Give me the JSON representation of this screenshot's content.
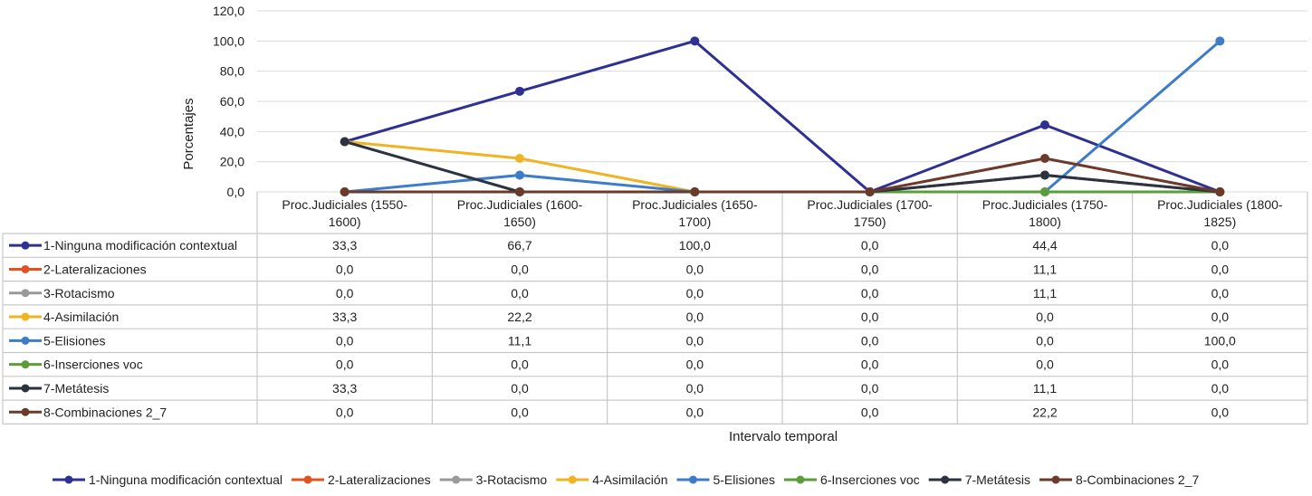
{
  "chart_data": {
    "type": "line",
    "ylabel": "Porcentajes",
    "xlabel": "Intervalo temporal",
    "ylim": [
      0,
      120
    ],
    "yticks": [
      "0,0",
      "20,0",
      "40,0",
      "60,0",
      "80,0",
      "100,0",
      "120,0"
    ],
    "grid": true,
    "legend_position": "bottom",
    "has_data_table": true,
    "categories": [
      [
        "Proc.Judiciales (1550-",
        "1600)"
      ],
      [
        "Proc.Judiciales (1600-",
        "1650)"
      ],
      [
        "Proc.Judiciales (1650-",
        "1700)"
      ],
      [
        "Proc.Judiciales (1700-",
        "1750)"
      ],
      [
        "Proc.Judiciales (1750-",
        "1800)"
      ],
      [
        "Proc.Judiciales (1800-",
        "1825)"
      ]
    ],
    "series": [
      {
        "name": "1-Ninguna modificación contextual",
        "color": "#2e3192",
        "values": [
          33.3,
          66.7,
          100.0,
          0.0,
          44.4,
          0.0
        ],
        "labels": [
          "33,3",
          "66,7",
          "100,0",
          "0,0",
          "44,4",
          "0,0"
        ]
      },
      {
        "name": "2-Lateralizaciones",
        "color": "#e0521f",
        "values": [
          0.0,
          0.0,
          0.0,
          0.0,
          11.1,
          0.0
        ],
        "labels": [
          "0,0",
          "0,0",
          "0,0",
          "0,0",
          "11,1",
          "0,0"
        ]
      },
      {
        "name": "3-Rotacismo",
        "color": "#9a9a9a",
        "values": [
          0.0,
          0.0,
          0.0,
          0.0,
          11.1,
          0.0
        ],
        "labels": [
          "0,0",
          "0,0",
          "0,0",
          "0,0",
          "11,1",
          "0,0"
        ]
      },
      {
        "name": "4-Asimilación",
        "color": "#f0b323",
        "values": [
          33.3,
          22.2,
          0.0,
          0.0,
          0.0,
          0.0
        ],
        "labels": [
          "33,3",
          "22,2",
          "0,0",
          "0,0",
          "0,0",
          "0,0"
        ]
      },
      {
        "name": "5-Elisiones",
        "color": "#3d7cc9",
        "values": [
          0.0,
          11.1,
          0.0,
          0.0,
          0.0,
          100.0
        ],
        "labels": [
          "0,0",
          "11,1",
          "0,0",
          "0,0",
          "0,0",
          "100,0"
        ]
      },
      {
        "name": "6-Inserciones voc",
        "color": "#5a9e3a",
        "values": [
          0.0,
          0.0,
          0.0,
          0.0,
          0.0,
          0.0
        ],
        "labels": [
          "0,0",
          "0,0",
          "0,0",
          "0,0",
          "0,0",
          "0,0"
        ]
      },
      {
        "name": "7-Metátesis",
        "color": "#2b3340",
        "values": [
          33.3,
          0.0,
          0.0,
          0.0,
          11.1,
          0.0
        ],
        "labels": [
          "33,3",
          "0,0",
          "0,0",
          "0,0",
          "11,1",
          "0,0"
        ]
      },
      {
        "name": "8-Combinaciones 2_7",
        "color": "#6b3a2a",
        "values": [
          0.0,
          0.0,
          0.0,
          0.0,
          22.2,
          0.0
        ],
        "labels": [
          "0,0",
          "0,0",
          "0,0",
          "0,0",
          "22,2",
          "0,0"
        ]
      }
    ]
  }
}
